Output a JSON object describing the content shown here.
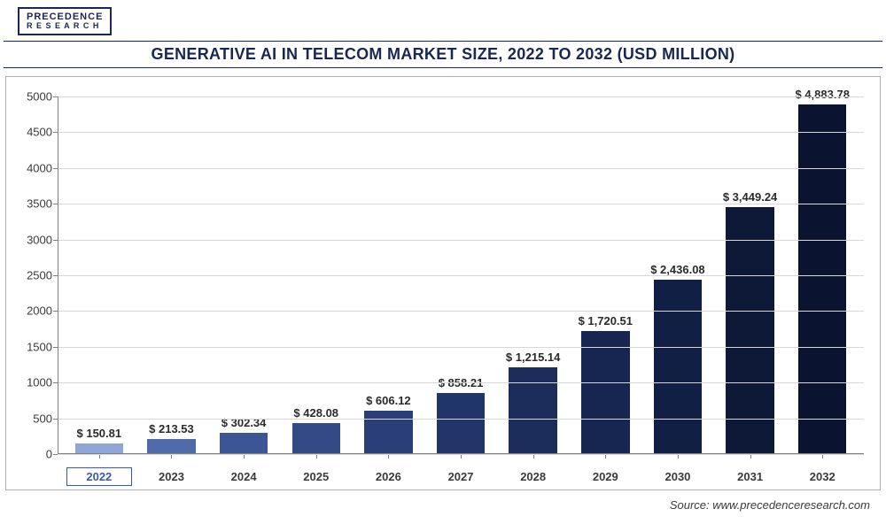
{
  "logo": {
    "line1": "PRECEDENCE",
    "line2": "R E S E A R C H"
  },
  "title": "GENERATIVE AI IN TELECOM MARKET SIZE, 2022 TO 2032 (USD MILLION)",
  "source": "Source: www.precedenceresearch.com",
  "chart": {
    "type": "bar",
    "ylim": [
      0,
      5000
    ],
    "ytick_step": 500,
    "yticks": [
      0,
      500,
      1000,
      1500,
      2000,
      2500,
      3000,
      3500,
      4000,
      4500,
      5000
    ],
    "grid_color": "#d8d8d8",
    "axis_color": "#808080",
    "background_color": "#ffffff",
    "bar_width": 0.74,
    "label_fontsize": 13,
    "title_fontsize": 18,
    "highlight_year": "2022",
    "categories": [
      "2022",
      "2023",
      "2024",
      "2025",
      "2026",
      "2027",
      "2028",
      "2029",
      "2030",
      "2031",
      "2032"
    ],
    "values": [
      150.81,
      213.53,
      302.34,
      428.08,
      606.12,
      858.21,
      1215.14,
      1720.51,
      2436.08,
      3449.24,
      4883.78
    ],
    "value_labels": [
      "$ 150.81",
      "$ 213.53",
      "$ 302.34",
      "$ 428.08",
      "$ 606.12",
      "$ 858.21",
      "$ 1,215.14",
      "$ 1,720.51",
      "$ 2,436.08",
      "$ 3,449.24",
      "$ 4,883.78"
    ],
    "bar_colors": [
      "#8fa6d6",
      "#4f6aa8",
      "#3c5594",
      "#334a86",
      "#2a3f78",
      "#22356a",
      "#1c2d5c",
      "#172650",
      "#121f44",
      "#0e1938",
      "#0a1430"
    ]
  }
}
